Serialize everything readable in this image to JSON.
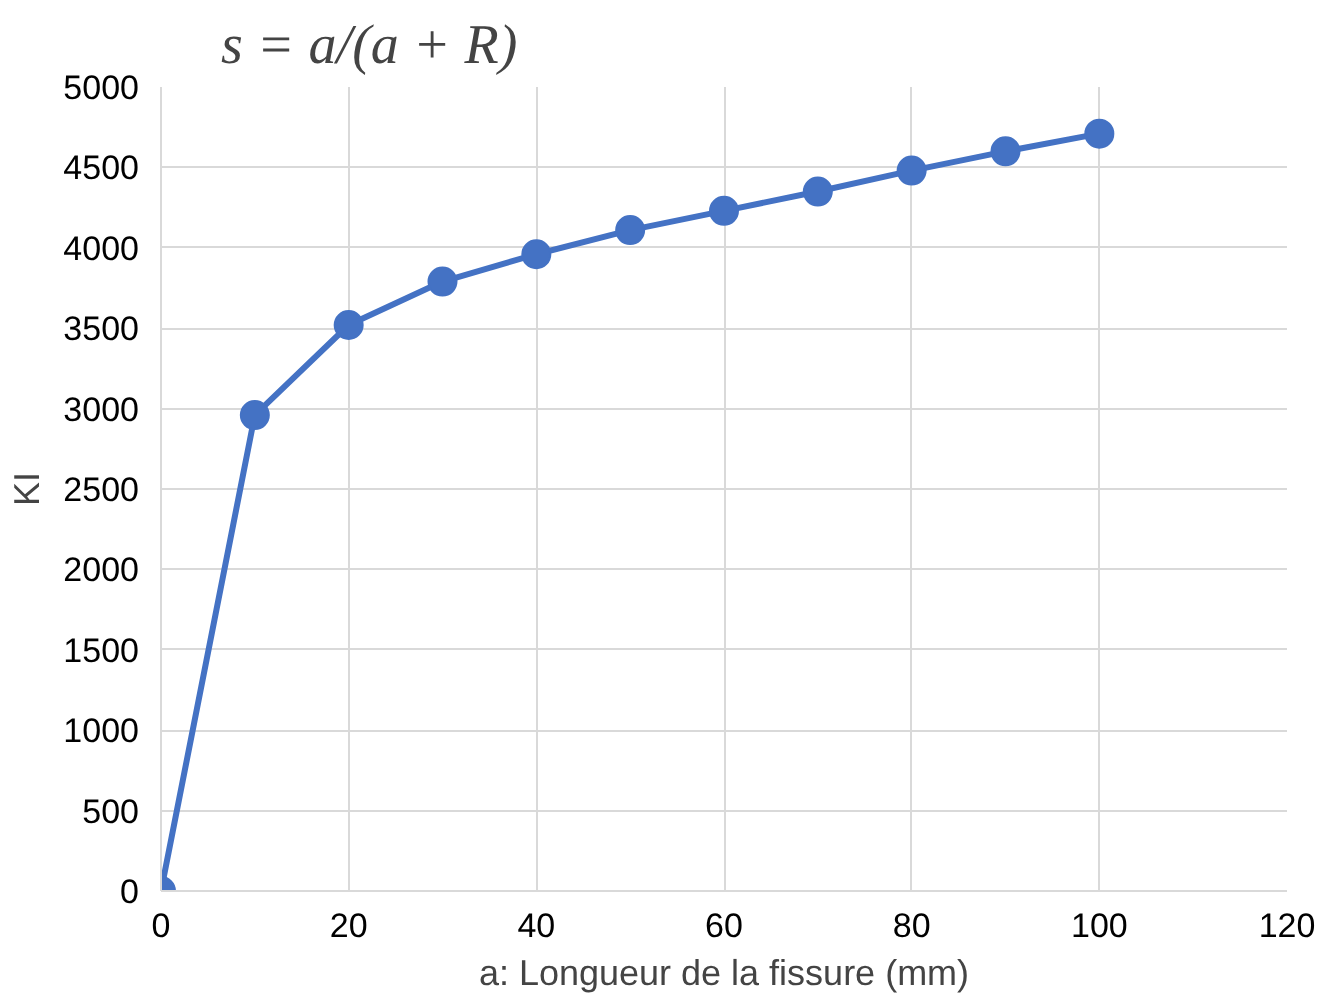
{
  "chart_data": {
    "type": "line",
    "title": "s = a/(a + R)",
    "xlabel": "a: Longueur de la fissure (mm)",
    "ylabel": "KI",
    "x": [
      0,
      10,
      20,
      30,
      40,
      50,
      60,
      70,
      80,
      90,
      100
    ],
    "series": [
      {
        "color": "#4472c4",
        "values": [
          0,
          2960,
          3520,
          3790,
          3960,
          4110,
          4230,
          4350,
          4480,
          4600,
          4710
        ]
      }
    ],
    "xlim": [
      0,
      120
    ],
    "xticks": [
      0,
      20,
      40,
      60,
      80,
      100,
      120
    ],
    "ylim": [
      0,
      5000
    ],
    "yticks": [
      0,
      500,
      1000,
      1500,
      2000,
      2500,
      3000,
      3500,
      4000,
      4500,
      5000
    ],
    "grid": true,
    "marker": "circle",
    "line_style": "solid"
  }
}
